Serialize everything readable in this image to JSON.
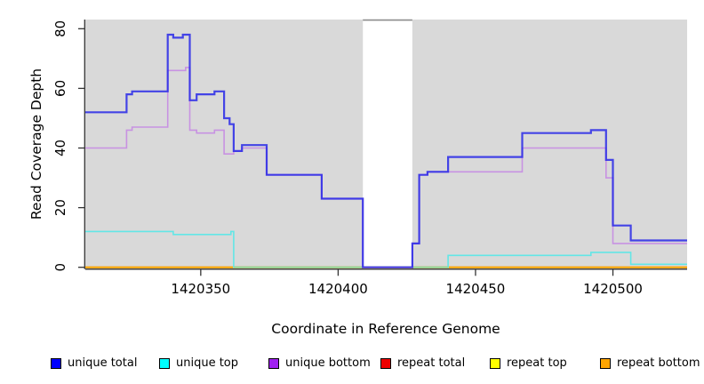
{
  "chart_data": {
    "type": "line",
    "subtype": "step-coverage-plot",
    "title": "",
    "xlabel": "Coordinate in Reference Genome",
    "ylabel": "Read Coverage Depth",
    "x_range": [
      1420308,
      1420527
    ],
    "y_range": [
      0,
      83.5
    ],
    "x_ticks": [
      {
        "value": 1420350,
        "label": "1420350"
      },
      {
        "value": 1420400,
        "label": "1420400"
      },
      {
        "value": 1420450,
        "label": "1420450"
      },
      {
        "value": 1420500,
        "label": "1420500"
      }
    ],
    "y_ticks": [
      {
        "value": 0,
        "label": "0"
      },
      {
        "value": 20,
        "label": "20"
      },
      {
        "value": 40,
        "label": "40"
      },
      {
        "value": 60,
        "label": "60"
      },
      {
        "value": 80,
        "label": "80"
      }
    ],
    "panel_color": "#D9D9D9",
    "gap_region": {
      "start": 1420409,
      "end": 1420427,
      "fill": "#FFFFFF",
      "top_line_color": "#8C8C8C"
    },
    "legend_position": "bottom",
    "grid": false,
    "series": [
      {
        "name": "repeat total",
        "legend_color": "#EE0000",
        "line_color": "#EE0000",
        "width": 1.6,
        "steps": [
          [
            1420308,
            0
          ]
        ]
      },
      {
        "name": "repeat top",
        "legend_color": "#FFFF00",
        "line_color": "#FFFF00",
        "width": 1.6,
        "steps": [
          [
            1420308,
            0
          ]
        ]
      },
      {
        "name": "repeat bottom",
        "legend_color": "#FFA500",
        "line_color": "#FFA500",
        "width": 2,
        "steps": [
          [
            1420308,
            0
          ]
        ]
      },
      {
        "name": "unique top",
        "legend_color": "#00FFFF",
        "line_color": "#63E6E6",
        "width": 1.6,
        "steps": [
          [
            1420308,
            12
          ],
          [
            1420340,
            11
          ],
          [
            1420361,
            12
          ],
          [
            1420362,
            0
          ],
          [
            1420440,
            4
          ],
          [
            1420492,
            5
          ],
          [
            1420506.5,
            1
          ]
        ]
      },
      {
        "name": "unique bottom",
        "legend_color": "#A020F0",
        "line_color": "#C892E2",
        "width": 1.6,
        "steps": [
          [
            1420308,
            40
          ],
          [
            1420323,
            46
          ],
          [
            1420325,
            47
          ],
          [
            1420338,
            66
          ],
          [
            1420344.5,
            67
          ],
          [
            1420346,
            46
          ],
          [
            1420348.5,
            45
          ],
          [
            1420355,
            46
          ],
          [
            1420358.5,
            38
          ],
          [
            1420362,
            39
          ],
          [
            1420365,
            40
          ],
          [
            1420374,
            31
          ],
          [
            1420394,
            23
          ],
          [
            1420409,
            0
          ],
          [
            1420427,
            8
          ],
          [
            1420429.5,
            31
          ],
          [
            1420432.5,
            32
          ],
          [
            1420467,
            40
          ],
          [
            1420497.5,
            30
          ],
          [
            1420500,
            8
          ]
        ]
      },
      {
        "name": "unique total",
        "legend_color": "#0000FF",
        "line_color": "#2828E8",
        "opacity": 0.85,
        "width": 2.2,
        "steps": [
          [
            1420308,
            52
          ],
          [
            1420323,
            58
          ],
          [
            1420325,
            59
          ],
          [
            1420338,
            78
          ],
          [
            1420340,
            77
          ],
          [
            1420343.5,
            78
          ],
          [
            1420346,
            56
          ],
          [
            1420348.5,
            58
          ],
          [
            1420355,
            59
          ],
          [
            1420358.5,
            50
          ],
          [
            1420360.5,
            48
          ],
          [
            1420362,
            39
          ],
          [
            1420365,
            41
          ],
          [
            1420374,
            31
          ],
          [
            1420394,
            23
          ],
          [
            1420409,
            0
          ],
          [
            1420427,
            8
          ],
          [
            1420429.5,
            31
          ],
          [
            1420432.5,
            32
          ],
          [
            1420440,
            37
          ],
          [
            1420467,
            45
          ],
          [
            1420492,
            46
          ],
          [
            1420497.5,
            36
          ],
          [
            1420500,
            14
          ],
          [
            1420506.5,
            9
          ]
        ]
      }
    ],
    "blend_overlay": {
      "note": "cyan drawn over orange 0-line appears green",
      "color": "#85DBA3",
      "from": 1420362,
      "to": 1420440,
      "value": 0,
      "width": 1.6
    },
    "legend_entries": [
      "unique total",
      "unique top",
      "unique bottom",
      "repeat total",
      "repeat top",
      "repeat bottom"
    ]
  }
}
